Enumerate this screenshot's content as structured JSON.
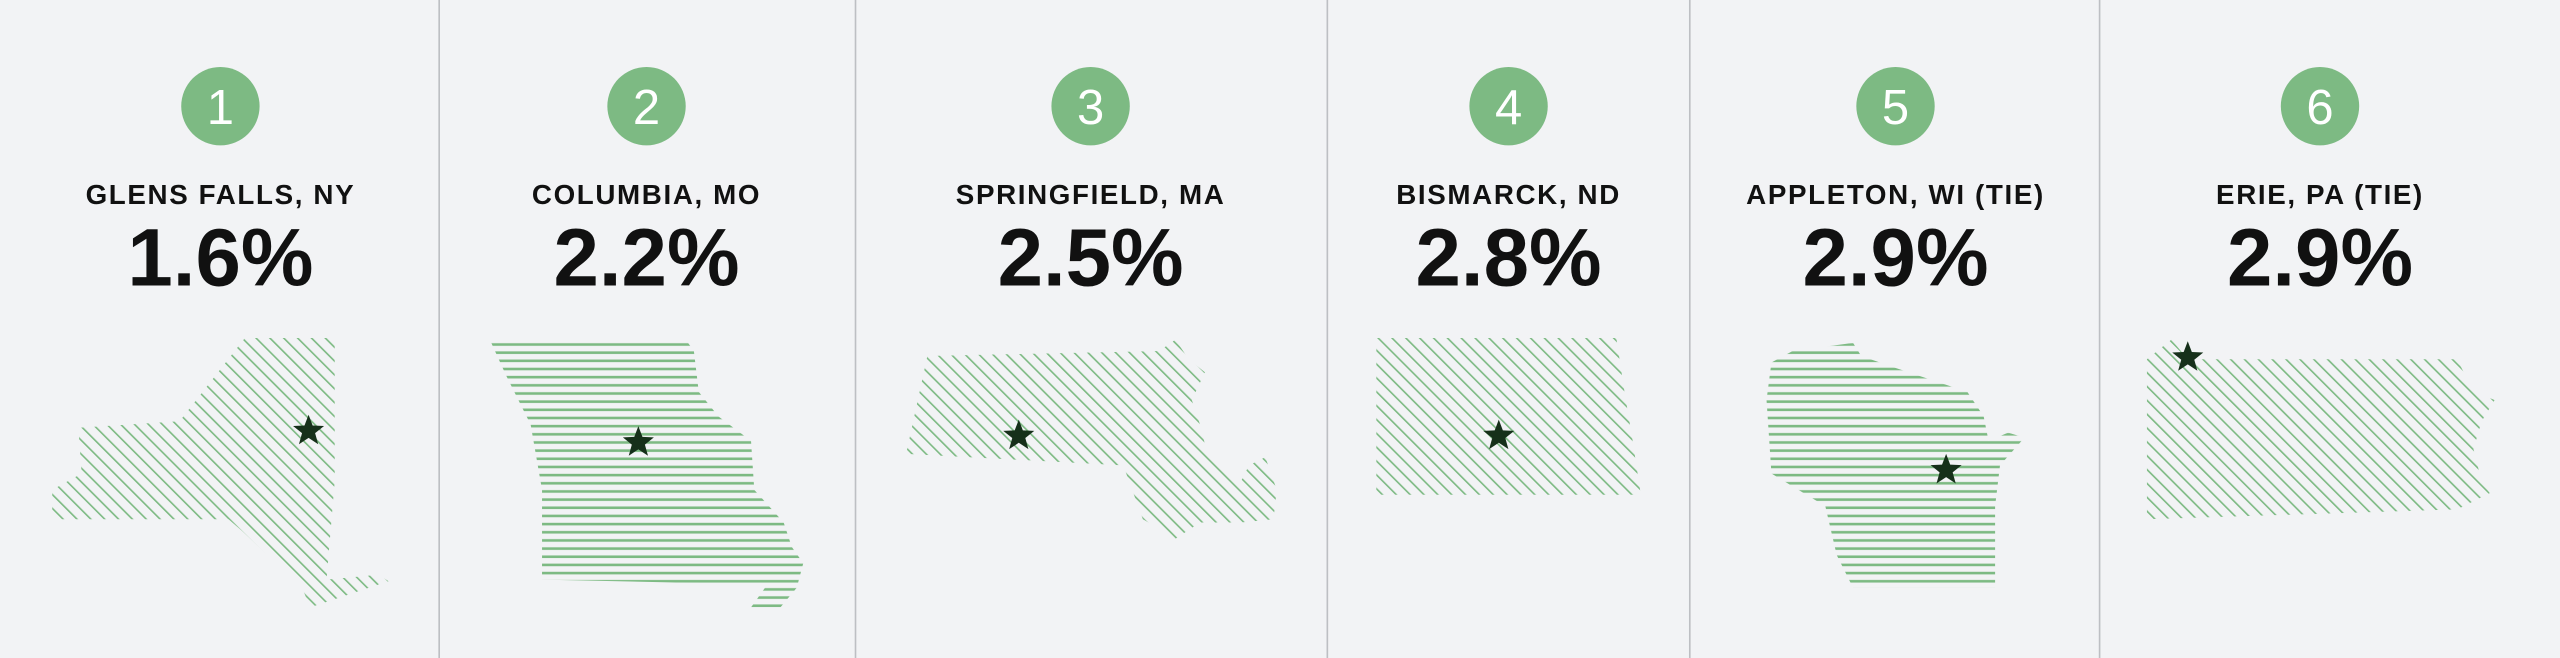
{
  "items": [
    {
      "rank": "1",
      "city": "GLENS FALLS, NY",
      "value": "1.6%"
    },
    {
      "rank": "2",
      "city": "COLUMBIA, MO",
      "value": "2.2%"
    },
    {
      "rank": "3",
      "city": "SPRINGFIELD, MA",
      "value": "2.5%"
    },
    {
      "rank": "4",
      "city": "BISMARCK, ND",
      "value": "2.8%"
    },
    {
      "rank": "5",
      "city": "APPLETON, WI (TIE)",
      "value": "2.9%"
    },
    {
      "rank": "6",
      "city": "ERIE, PA (TIE)",
      "value": "2.9%"
    }
  ]
}
